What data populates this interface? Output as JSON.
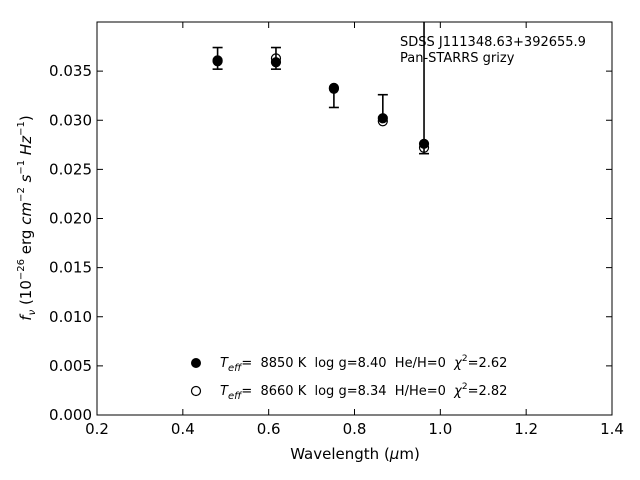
{
  "chart_data": {
    "type": "scatter",
    "annotation": [
      "SDSS J111348.63+392655.9",
      "Pan-STARRS grizy"
    ],
    "xlabel": {
      "text": "Wavelength (",
      "mu": "μ",
      "unit": "m)"
    },
    "ylabel": {
      "f": "f",
      "nu": "ν",
      "open": " (10",
      "exp1": "−26",
      "mid": " erg ",
      "cm": "cm",
      "exp2": "−2",
      "s": " s",
      "exp3": "−1",
      "hz": " Hz",
      "exp4": "−1",
      "close": ")"
    },
    "xlim": [
      0.2,
      1.4
    ],
    "ylim": [
      0.0,
      0.04
    ],
    "xticks": [
      "0.2",
      "0.4",
      "0.6",
      "0.8",
      "1.0",
      "1.2",
      "1.4"
    ],
    "yticks": [
      "0.000",
      "0.005",
      "0.010",
      "0.015",
      "0.020",
      "0.025",
      "0.030",
      "0.035"
    ],
    "grid": false,
    "legend_position": "lower-center",
    "observed": {
      "x": [
        0.481,
        0.617,
        0.752,
        0.866,
        0.962
      ],
      "y": [
        0.0361,
        0.0362,
        0.0332,
        0.03,
        0.0272
      ],
      "yerr_low": [
        0.0009,
        0.001,
        0.0019,
        0.0,
        0.0006
      ],
      "yerr_high": [
        0.0013,
        0.0012,
        0.0,
        0.0026,
        0.019
      ]
    },
    "series": [
      {
        "name": {
          "T": "T",
          "sub": "eff",
          "rest": "=  8850 K  log g=8.40  He/H=0  ",
          "chi": "χ",
          "sq": "2",
          "val": "=2.62"
        },
        "marker": "filled-circle",
        "color": "#000000",
        "x": [
          0.481,
          0.617,
          0.752,
          0.866,
          0.962
        ],
        "y": [
          0.0361,
          0.0359,
          0.0333,
          0.0302,
          0.0276
        ]
      },
      {
        "name": {
          "T": "T",
          "sub": "eff",
          "rest": "=  8660 K  log g=8.34  H/He=0  ",
          "chi": "χ",
          "sq": "2",
          "val": "=2.82"
        },
        "marker": "open-circle",
        "color": "#000000",
        "x": [
          0.481,
          0.617,
          0.752,
          0.866,
          0.962
        ],
        "y": [
          0.036,
          0.0363,
          0.0332,
          0.0299,
          0.0272
        ]
      }
    ]
  }
}
